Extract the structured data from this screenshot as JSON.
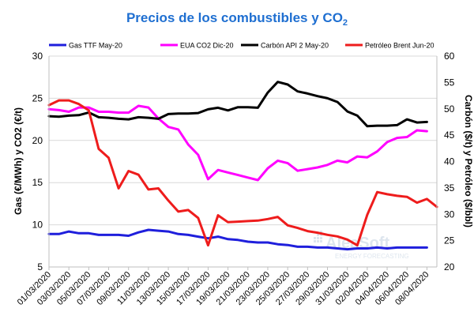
{
  "chart_data": {
    "type": "line",
    "title": "Precios de los combustibles y CO",
    "title_subscript": "2",
    "ylabel_left": "Gas (€/MWh) y CO2 (€/t)",
    "ylabel_right": "Carbón ($/t) y Petróleo ($/bbl)",
    "ylim_left": [
      5,
      30
    ],
    "ylim_right": [
      20,
      60
    ],
    "yticks_left": [
      "5",
      "10",
      "15",
      "20",
      "25",
      "30"
    ],
    "yticks_right": [
      "20",
      "25",
      "30",
      "35",
      "40",
      "45",
      "50",
      "55",
      "60"
    ],
    "grid": true,
    "legend_position": "top",
    "x_count": 40,
    "x_tick_labels": [
      "01/03/2020",
      "03/03/2020",
      "05/03/2020",
      "07/03/2020",
      "09/03/2020",
      "11/03/2020",
      "13/03/2020",
      "15/03/2020",
      "17/03/2020",
      "19/03/2020",
      "21/03/2020",
      "23/03/2020",
      "25/03/2020",
      "27/03/2020",
      "29/03/2020",
      "31/03/2020",
      "02/04/2020",
      "04/04/2020",
      "06/04/2020",
      "08/04/2020"
    ],
    "series": [
      {
        "name": "Gas TTF May-20",
        "axis": "left",
        "color": "#1f1fdc",
        "values": [
          8.9,
          8.9,
          9.2,
          9.0,
          9.0,
          8.8,
          8.8,
          8.8,
          8.7,
          9.1,
          9.4,
          9.3,
          9.2,
          8.9,
          8.8,
          8.6,
          8.4,
          8.6,
          8.3,
          8.2,
          8.0,
          7.9,
          7.9,
          7.7,
          7.6,
          7.4,
          7.4,
          7.3,
          7.3,
          7.2,
          7.1,
          7.2,
          7.2,
          7.3,
          7.2,
          7.3,
          7.3,
          7.3,
          7.3,
          null
        ]
      },
      {
        "name": "EUA CO2 Dic-20",
        "axis": "left",
        "color": "#ff00ff",
        "values": [
          23.7,
          23.6,
          23.4,
          23.9,
          23.9,
          23.4,
          23.4,
          23.3,
          23.3,
          24.1,
          23.9,
          22.6,
          21.6,
          21.3,
          19.5,
          18.3,
          15.4,
          16.5,
          16.2,
          15.9,
          15.6,
          15.3,
          16.7,
          17.6,
          17.3,
          16.4,
          16.6,
          16.8,
          17.1,
          17.6,
          17.4,
          18.1,
          18.0,
          18.7,
          19.8,
          20.3,
          20.4,
          21.2,
          21.1,
          null
        ]
      },
      {
        "name": "Carbón API 2 May-20",
        "axis": "right",
        "color": "#000000",
        "values": [
          48.6,
          48.5,
          48.7,
          48.8,
          49.3,
          48.4,
          48.3,
          48.1,
          48.0,
          48.4,
          48.3,
          48.1,
          49.0,
          49.1,
          49.1,
          49.2,
          49.9,
          50.2,
          49.7,
          50.3,
          50.3,
          50.2,
          53.1,
          55.1,
          54.6,
          53.3,
          52.9,
          52.4,
          52.0,
          51.3,
          49.5,
          48.7,
          46.7,
          46.8,
          46.8,
          46.9,
          48.0,
          47.4,
          47.5,
          null
        ]
      },
      {
        "name": "Petróleo Brent Jun-20",
        "axis": "right",
        "color": "#ee1c1c",
        "values": [
          50.7,
          51.6,
          51.6,
          50.9,
          49.7,
          42.4,
          40.7,
          34.9,
          38.2,
          37.5,
          34.7,
          34.9,
          32.6,
          30.5,
          30.8,
          29.3,
          24.1,
          29.8,
          28.5,
          28.6,
          28.7,
          28.8,
          29.1,
          29.5,
          27.9,
          27.4,
          26.8,
          26.5,
          26.1,
          25.8,
          25.2,
          24.1,
          29.9,
          34.2,
          33.8,
          33.5,
          33.3,
          32.2,
          32.9,
          31.4
        ]
      }
    ]
  },
  "watermark": {
    "brand": "AleaSoft",
    "tagline": "ENERGY FORECASTING"
  }
}
